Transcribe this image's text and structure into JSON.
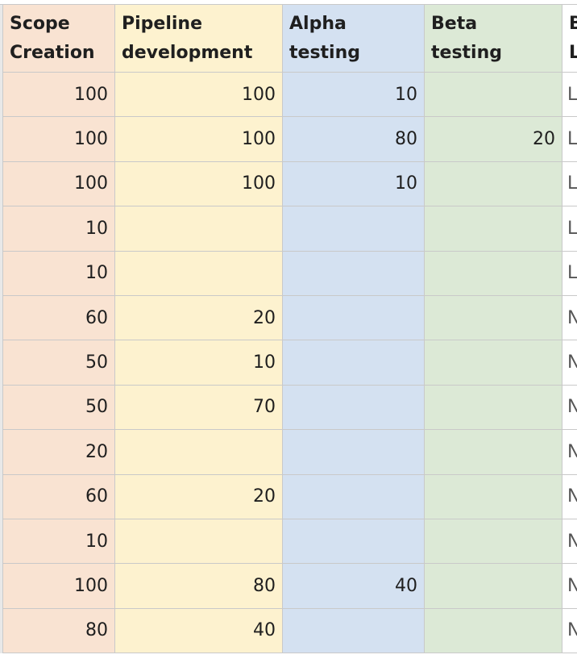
{
  "table": {
    "columns": [
      {
        "header": [
          "Scope",
          "Creation"
        ],
        "color": "#f9e3d2"
      },
      {
        "header": [
          "Pipeline",
          "development"
        ],
        "color": "#fdf2cf"
      },
      {
        "header": [
          "Alpha",
          "testing"
        ],
        "color": "#d4e1f1"
      },
      {
        "header": [
          "Beta",
          "testing"
        ],
        "color": "#dce9d6"
      },
      {
        "header": [
          "B",
          "L"
        ],
        "color": "#ffffff"
      }
    ],
    "rows": [
      [
        100,
        100,
        10,
        null,
        "L"
      ],
      [
        100,
        100,
        80,
        20,
        "L"
      ],
      [
        100,
        100,
        10,
        null,
        "L"
      ],
      [
        10,
        null,
        null,
        null,
        "L"
      ],
      [
        10,
        null,
        null,
        null,
        "L"
      ],
      [
        60,
        20,
        null,
        null,
        "N"
      ],
      [
        50,
        10,
        null,
        null,
        "N"
      ],
      [
        50,
        70,
        null,
        null,
        "N"
      ],
      [
        20,
        null,
        null,
        null,
        "N"
      ],
      [
        60,
        20,
        null,
        null,
        "N"
      ],
      [
        10,
        null,
        null,
        null,
        "N"
      ],
      [
        100,
        80,
        40,
        null,
        "N"
      ],
      [
        80,
        40,
        null,
        null,
        "N"
      ]
    ]
  }
}
